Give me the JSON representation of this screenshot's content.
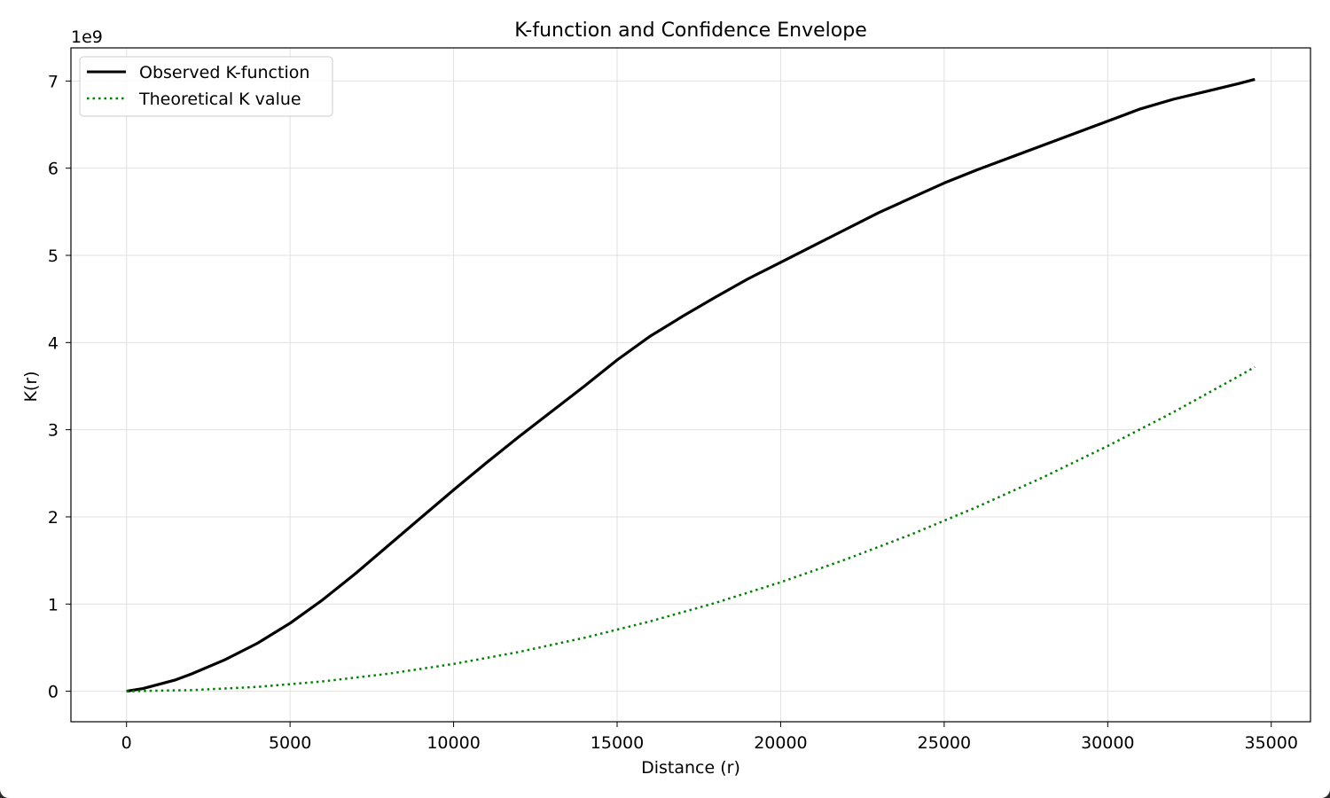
{
  "chart_data": {
    "type": "line",
    "title": "K-function and Confidence Envelope",
    "xlabel": "Distance (r)",
    "ylabel": "K(r)",
    "y_offset_label": "1e9",
    "xlim": [
      -1700,
      36200
    ],
    "ylim": [
      -0.35,
      7.38
    ],
    "x_ticks": [
      0,
      5000,
      10000,
      15000,
      20000,
      25000,
      30000,
      35000
    ],
    "x_tick_labels": [
      "0",
      "5000",
      "10000",
      "15000",
      "20000",
      "25000",
      "30000",
      "35000"
    ],
    "y_ticks": [
      0,
      1,
      2,
      3,
      4,
      5,
      6,
      7
    ],
    "y_tick_labels": [
      "0",
      "1",
      "2",
      "3",
      "4",
      "5",
      "6",
      "7"
    ],
    "grid": true,
    "legend_position": "top-left",
    "series": [
      {
        "name": "Observed K-function",
        "color": "#000000",
        "style": "solid",
        "x": [
          0,
          500,
          1000,
          1500,
          2000,
          3000,
          4000,
          5000,
          6000,
          7000,
          8000,
          9000,
          10000,
          11000,
          12000,
          13000,
          14000,
          15000,
          16000,
          17000,
          18000,
          19000,
          20000,
          21000,
          22000,
          23000,
          24000,
          25000,
          26000,
          27000,
          28000,
          29000,
          30000,
          31000,
          32000,
          33000,
          34000,
          34500
        ],
        "y": [
          0.0,
          0.03,
          0.08,
          0.13,
          0.2,
          0.36,
          0.55,
          0.78,
          1.05,
          1.35,
          1.67,
          1.99,
          2.31,
          2.62,
          2.92,
          3.21,
          3.5,
          3.8,
          4.07,
          4.3,
          4.52,
          4.73,
          4.92,
          5.11,
          5.3,
          5.49,
          5.66,
          5.83,
          5.98,
          6.12,
          6.26,
          6.4,
          6.54,
          6.68,
          6.79,
          6.88,
          6.97,
          7.02
        ]
      },
      {
        "name": "Theoretical K value",
        "color": "#008000",
        "style": "dotted",
        "x": [
          0,
          2000,
          4000,
          6000,
          8000,
          10000,
          12000,
          14000,
          16000,
          18000,
          20000,
          22000,
          24000,
          26000,
          28000,
          30000,
          32000,
          34000,
          34500
        ],
        "y": [
          0.0,
          0.013,
          0.05,
          0.113,
          0.2,
          0.313,
          0.45,
          0.613,
          0.8,
          1.013,
          1.25,
          1.513,
          1.8,
          2.113,
          2.45,
          2.813,
          3.2,
          3.613,
          3.72
        ]
      }
    ]
  }
}
